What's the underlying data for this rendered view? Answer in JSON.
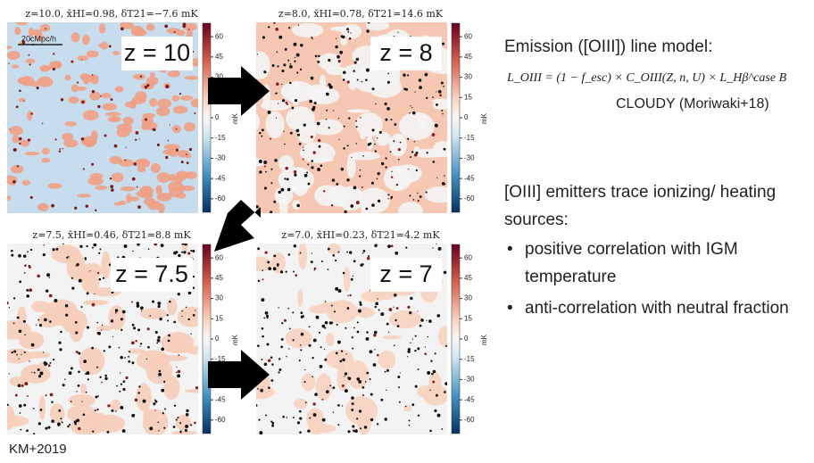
{
  "panels": [
    {
      "header": "z=10.0, x̄HI=0.98, δT21=−7.6 mK",
      "label": "z = 10"
    },
    {
      "header": "z=8.0, x̄HI=0.78, δT21=14.6 mK",
      "label": "z = 8"
    },
    {
      "header": "z=7.5, x̄HI=0.46, δT21=8.8 mK",
      "label": "z = 7.5"
    },
    {
      "header": "z=7.0, x̄HI=0.23, δT21=4.2 mK",
      "label": "z = 7"
    }
  ],
  "scale_bar": "20cMpc/h",
  "colorbar": {
    "ticks": [
      60,
      45,
      30,
      15,
      0,
      -15,
      -30,
      -45,
      -60
    ],
    "unit": "mK"
  },
  "model": {
    "heading": "Emission ([OIII]) line model:",
    "formula": "L_OIII = (1 − f_esc) × C_OIII(Z, n, U) × L_Hβ^case B",
    "note": "CLOUDY (Moriwaki+18)"
  },
  "summary": {
    "heading": "[OIII] emitters trace ionizing/ heating sources:",
    "bullets": [
      "positive correlation with IGM temperature",
      "anti-correlation with neutral fraction"
    ]
  },
  "credit": "KM+2019"
}
